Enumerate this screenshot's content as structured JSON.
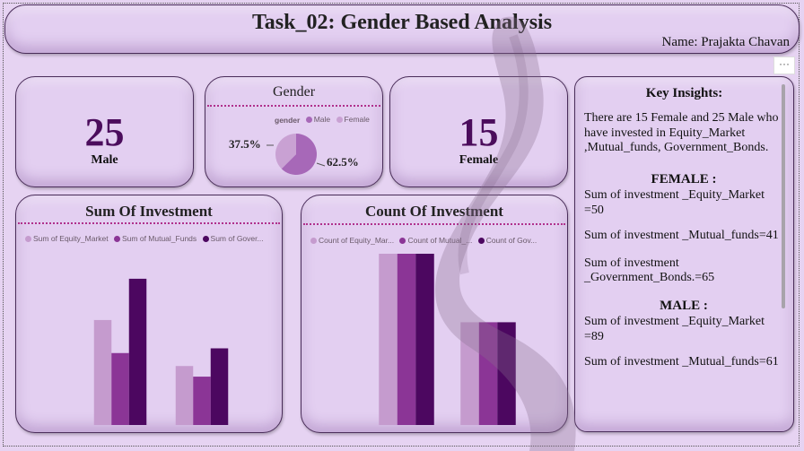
{
  "header": {
    "title": "Task_02: Gender Based Analysis",
    "author": "Name: Prajakta Chavan"
  },
  "more_options": "···",
  "kpis": {
    "male": {
      "value": "25",
      "label": "Male"
    },
    "female": {
      "value": "15",
      "label": "Female"
    }
  },
  "gender_card": {
    "title": "Gender",
    "legend_title": "gender",
    "legend": [
      "Male",
      "Female"
    ],
    "labels": {
      "female_pct": "37.5%",
      "male_pct": "62.5%"
    }
  },
  "sum_card": {
    "title": "Sum Of Investment",
    "legend": [
      "Sum of Equity_Market",
      "Sum of Mutual_Funds",
      "Sum of Gover..."
    ]
  },
  "count_card": {
    "title": "Count Of Investment",
    "legend": [
      "Count of Equity_Mar...",
      "Count of Mutual_...",
      "Count of Gov..."
    ]
  },
  "colors": {
    "c1": "#c59bce",
    "c2": "#8b3596",
    "c3": "#4c0760",
    "accent": "#b0308c"
  },
  "chart_data": [
    {
      "type": "pie",
      "title": "Gender",
      "categories": [
        "Male",
        "Female"
      ],
      "values": [
        62.5,
        37.5
      ]
    },
    {
      "type": "bar",
      "title": "Sum Of Investment",
      "categories": [
        "",
        ""
      ],
      "series": [
        {
          "name": "Sum of Equity_Market",
          "values": [
            89,
            50
          ]
        },
        {
          "name": "Sum of Mutual_Funds",
          "values": [
            61,
            41
          ]
        },
        {
          "name": "Sum of Gover...",
          "values": [
            124,
            65
          ]
        }
      ],
      "ylim": [
        0,
        130
      ]
    },
    {
      "type": "bar",
      "title": "Count Of Investment",
      "categories": [
        "",
        ""
      ],
      "series": [
        {
          "name": "Count of Equity_Mar...",
          "values": [
            25,
            15
          ]
        },
        {
          "name": "Count of Mutual_...",
          "values": [
            25,
            15
          ]
        },
        {
          "name": "Count of Gov...",
          "values": [
            25,
            15
          ]
        }
      ],
      "ylim": [
        0,
        25
      ]
    }
  ],
  "insights": {
    "title": "Key Insights:",
    "intro": "There are 15 Female and 25 Male who have invested in Equity_Market ,Mutual_funds, Government_Bonds.",
    "female_head": "FEMALE :",
    "female_items": [
      "Sum of investment _Equity_Market =50",
      "Sum of investment _Mutual_funds=41",
      "Sum of investment _Government_Bonds.=65"
    ],
    "male_head": "MALE :",
    "male_items": [
      "Sum of investment _Equity_Market =89",
      "Sum of investment _Mutual_funds=61"
    ]
  }
}
